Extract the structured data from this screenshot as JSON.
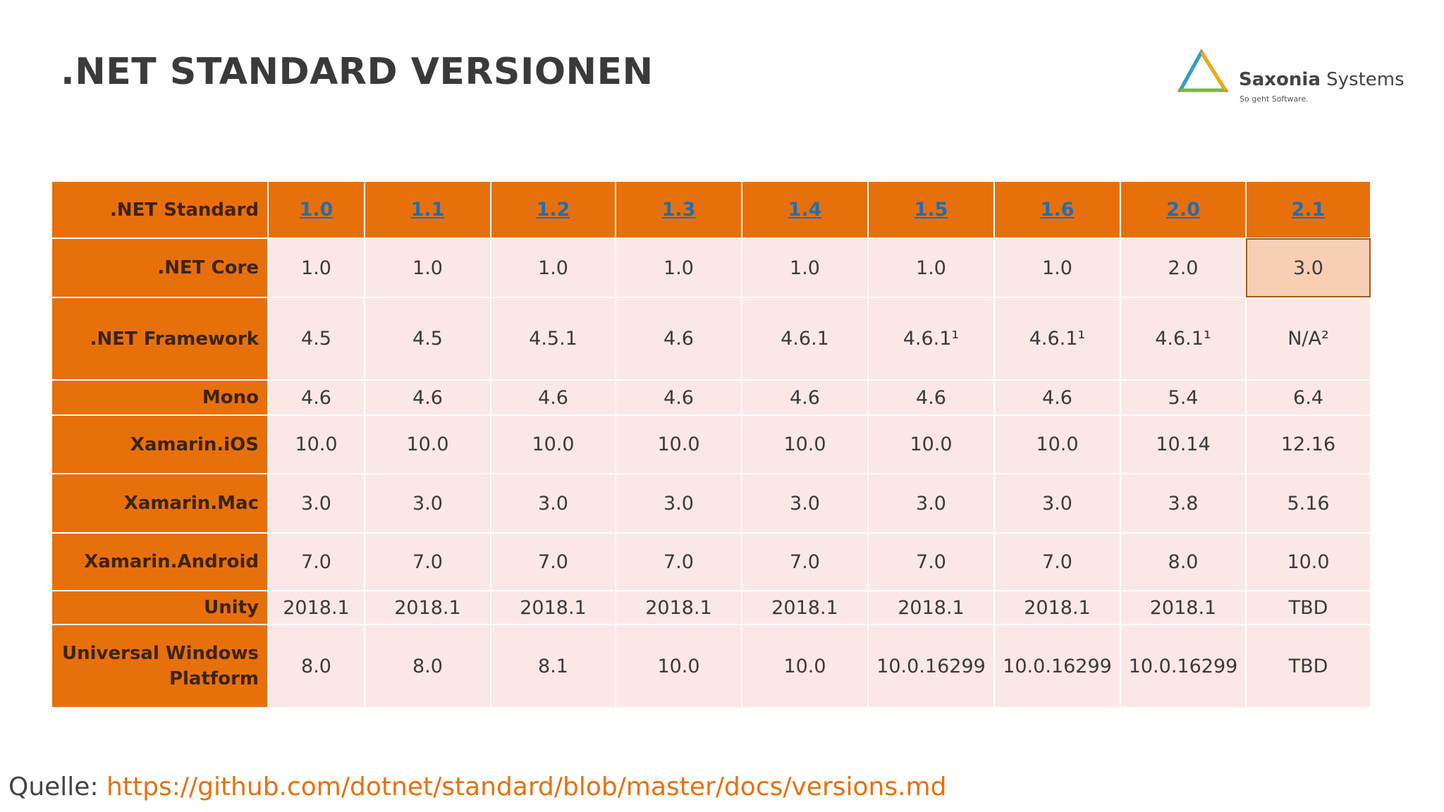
{
  "header": {
    "title": ".NET STANDARD VERSIONEN",
    "logo": {
      "name_bold": "Saxonia",
      "name_rest": "Systems",
      "tagline": "So geht Software."
    }
  },
  "table": {
    "header": [
      ".NET Standard",
      "1.0",
      "1.1",
      "1.2",
      "1.3",
      "1.4",
      "1.5",
      "1.6",
      "2.0",
      "2.1"
    ],
    "rows": [
      [
        ".NET Core",
        "1.0",
        "1.0",
        "1.0",
        "1.0",
        "1.0",
        "1.0",
        "1.0",
        "2.0",
        "3.0"
      ],
      [
        ".NET Framework",
        "4.5",
        "4.5",
        "4.5.1",
        "4.6",
        "4.6.1",
        "4.6.1¹",
        "4.6.1¹",
        "4.6.1¹",
        "N/A²"
      ],
      [
        "Mono",
        "4.6",
        "4.6",
        "4.6",
        "4.6",
        "4.6",
        "4.6",
        "4.6",
        "5.4",
        "6.4"
      ],
      [
        "Xamarin.iOS",
        "10.0",
        "10.0",
        "10.0",
        "10.0",
        "10.0",
        "10.0",
        "10.0",
        "10.14",
        "12.16"
      ],
      [
        "Xamarin.Mac",
        "3.0",
        "3.0",
        "3.0",
        "3.0",
        "3.0",
        "3.0",
        "3.0",
        "3.8",
        "5.16"
      ],
      [
        "Xamarin.Android",
        "7.0",
        "7.0",
        "7.0",
        "7.0",
        "7.0",
        "7.0",
        "7.0",
        "8.0",
        "10.0"
      ],
      [
        "Unity",
        "2018.1",
        "2018.1",
        "2018.1",
        "2018.1",
        "2018.1",
        "2018.1",
        "2018.1",
        "2018.1",
        "TBD"
      ],
      [
        "Universal Windows Platform",
        "8.0",
        "8.0",
        "8.1",
        "10.0",
        "10.0",
        "10.0.16299",
        "10.0.16299",
        "10.0.16299",
        "TBD"
      ]
    ]
  },
  "footer": {
    "label": "Quelle:",
    "link": "https://github.com/dotnet/standard/blob/master/docs/versions.md"
  }
}
